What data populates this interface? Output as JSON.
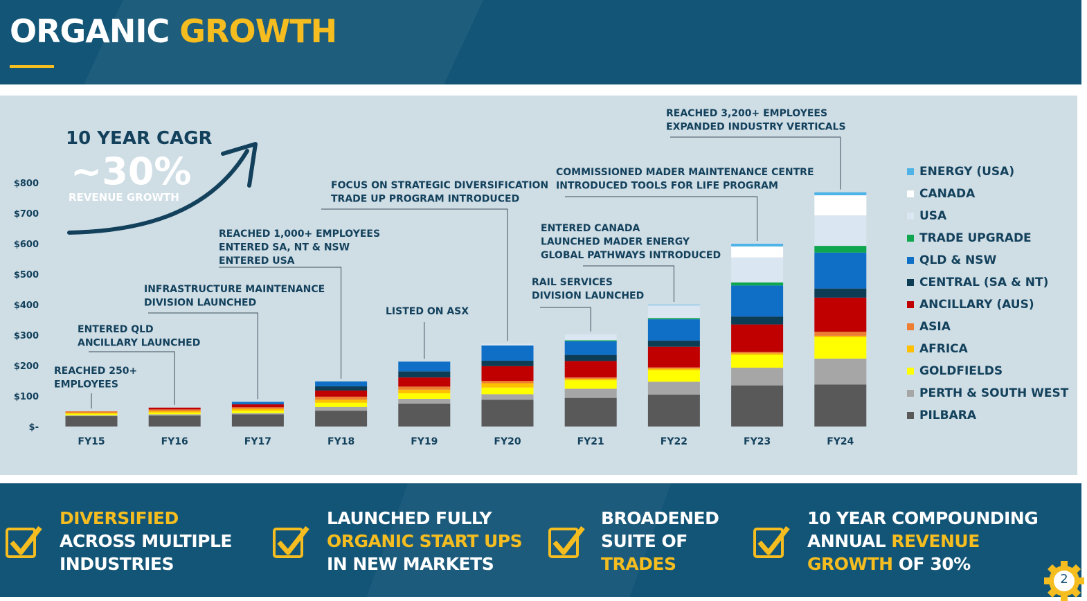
{
  "header": {
    "title_part1": "ORGANIC",
    "title_part2": "GROWTH"
  },
  "cagr": {
    "heading": "10 YEAR CAGR",
    "value": "~30%",
    "caption": "REVENUE GROWTH"
  },
  "chart_data": {
    "type": "bar",
    "stacked": true,
    "categories": [
      "FY15",
      "FY16",
      "FY17",
      "FY18",
      "FY19",
      "FY20",
      "FY21",
      "FY22",
      "FY23",
      "FY24"
    ],
    "ylim": [
      0,
      800
    ],
    "yticks": [
      0,
      100,
      200,
      300,
      400,
      500,
      600,
      700,
      800
    ],
    "ytick_labels": [
      "$-",
      "$100",
      "$200",
      "$300",
      "$400",
      "$500",
      "$600",
      "$700",
      "$800"
    ],
    "legend_position": "right",
    "series": [
      {
        "name": "PILBARA",
        "color": "#595959",
        "values": [
          34,
          36,
          40,
          52,
          75,
          88,
          94,
          105,
          135,
          138
        ]
      },
      {
        "name": "PERTH & SOUTH WEST",
        "color": "#a6a6a6",
        "values": [
          3,
          4,
          4,
          12,
          16,
          18,
          30,
          42,
          58,
          85
        ]
      },
      {
        "name": "GOLDFIELDS",
        "color": "#ffff00",
        "values": [
          5,
          6,
          8,
          14,
          18,
          22,
          28,
          38,
          42,
          70
        ]
      },
      {
        "name": "AFRICA",
        "color": "#ffc000",
        "values": [
          3,
          5,
          6,
          10,
          12,
          14,
          5,
          5,
          5,
          5
        ]
      },
      {
        "name": "ASIA",
        "color": "#ed7d31",
        "values": [
          5,
          5,
          5,
          10,
          10,
          8,
          4,
          4,
          5,
          13
        ]
      },
      {
        "name": "ANCILLARY (AUS)",
        "color": "#c00000",
        "values": [
          0,
          6,
          10,
          20,
          30,
          48,
          54,
          68,
          90,
          112
        ]
      },
      {
        "name": "CENTRAL (SA & NT)",
        "color": "#0d3c55",
        "values": [
          0,
          0,
          0,
          14,
          20,
          18,
          20,
          20,
          26,
          30
        ]
      },
      {
        "name": "QLD & NSW",
        "color": "#0f6fc6",
        "values": [
          0,
          0,
          8,
          16,
          32,
          50,
          45,
          70,
          102,
          118
        ]
      },
      {
        "name": "TRADE UPGRADE",
        "color": "#0ea64e",
        "values": [
          0,
          0,
          0,
          0,
          0,
          0,
          3,
          4,
          10,
          22
        ]
      },
      {
        "name": "USA",
        "color": "#dae6f1",
        "values": [
          0,
          0,
          0,
          0,
          0,
          6,
          20,
          42,
          82,
          100
        ]
      },
      {
        "name": "CANADA",
        "color": "#ffffff",
        "values": [
          0,
          0,
          0,
          0,
          0,
          0,
          0,
          0,
          36,
          66
        ]
      },
      {
        "name": "ENERGY (USA)",
        "color": "#4fb3e8",
        "values": [
          0,
          0,
          0,
          0,
          0,
          0,
          0,
          2,
          9,
          10
        ]
      }
    ],
    "annotations": [
      {
        "category": "FY15",
        "lines": [
          "REACHED 250+",
          "EMPLOYEES"
        ]
      },
      {
        "category": "FY16",
        "lines": [
          "ENTERED QLD",
          "ANCILLARY  LAUNCHED"
        ]
      },
      {
        "category": "FY17",
        "lines": [
          "INFRASTRUCTURE MAINTENANCE",
          "DIVISION LAUNCHED"
        ]
      },
      {
        "category": "FY18",
        "lines": [
          "REACHED 1,000+ EMPLOYEES",
          "ENTERED SA, NT & NSW",
          "ENTERED USA"
        ]
      },
      {
        "category": "FY19",
        "lines": [
          "LISTED ON ASX"
        ]
      },
      {
        "category": "FY20",
        "lines": [
          "FOCUS ON STRATEGIC DIVERSIFICATION",
          "TRADE UP PROGRAM INTRODUCED"
        ]
      },
      {
        "category": "FY21",
        "lines": [
          "RAIL SERVICES",
          "DIVISION LAUNCHED"
        ]
      },
      {
        "category": "FY22",
        "lines": [
          "ENTERED CANADA",
          "LAUNCHED MADER ENERGY",
          "GLOBAL PATHWAYS INTRODUCED"
        ]
      },
      {
        "category": "FY23",
        "lines": [
          "COMMISSIONED MADER MAINTENANCE CENTRE",
          "INTRODUCED TOOLS FOR LIFE PROGRAM"
        ]
      },
      {
        "category": "FY24",
        "lines": [
          "REACHED 3,200+ EMPLOYEES",
          "EXPANDED INDUSTRY VERTICALS"
        ]
      }
    ]
  },
  "footer": {
    "items": [
      {
        "parts": [
          {
            "text": "DIVERSIFIED",
            "hl": true
          },
          {
            "text": "\n",
            "hl": false
          },
          {
            "text": "ACROSS MULTIPLE",
            "hl": false
          },
          {
            "text": "\n",
            "hl": false
          },
          {
            "text": "INDUSTRIES",
            "hl": false
          }
        ]
      },
      {
        "parts": [
          {
            "text": "LAUNCHED FULLY",
            "hl": false
          },
          {
            "text": "\n",
            "hl": false
          },
          {
            "text": "ORGANIC START UPS",
            "hl": true
          },
          {
            "text": "\n",
            "hl": false
          },
          {
            "text": "IN NEW MARKETS",
            "hl": false
          }
        ]
      },
      {
        "parts": [
          {
            "text": "BROADENED",
            "hl": false
          },
          {
            "text": "\n",
            "hl": false
          },
          {
            "text": "SUITE OF",
            "hl": false
          },
          {
            "text": "\n",
            "hl": false
          },
          {
            "text": "TRADES",
            "hl": true
          }
        ]
      },
      {
        "parts": [
          {
            "text": "10 YEAR COMPOUNDING",
            "hl": false
          },
          {
            "text": "\n",
            "hl": false
          },
          {
            "text": "ANNUAL ",
            "hl": false
          },
          {
            "text": "REVENUE",
            "hl": true
          },
          {
            "text": "\n",
            "hl": false
          },
          {
            "text": "GROWTH",
            "hl": true
          },
          {
            "text": " OF 30%",
            "hl": false
          }
        ]
      }
    ]
  },
  "page_number": "2",
  "colors": {
    "brand_navy": "#135577",
    "accent_yellow": "#f5bd1f",
    "panel_bg": "#cfdde5",
    "text_navy": "#13415c"
  }
}
